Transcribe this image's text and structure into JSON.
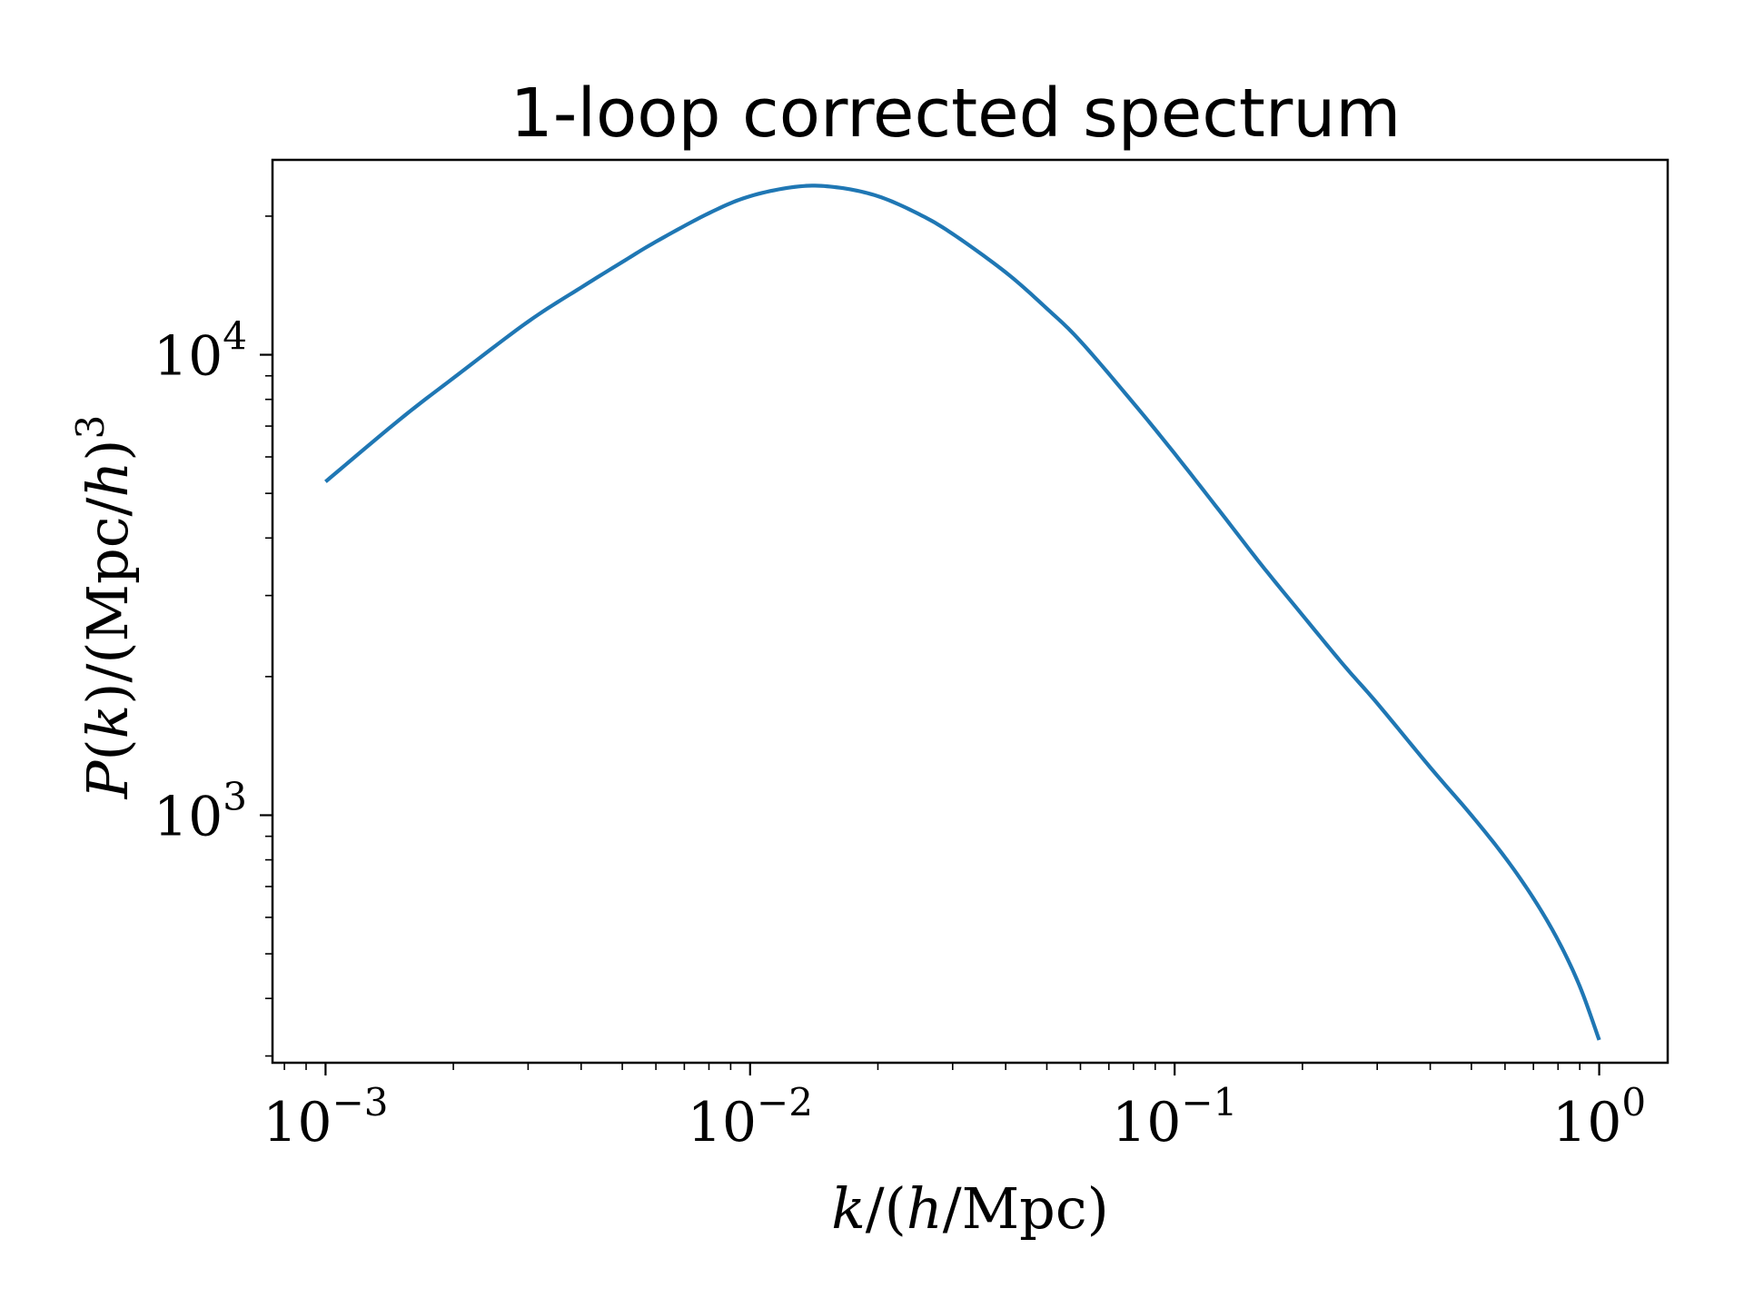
{
  "chart_data": {
    "type": "line",
    "title": "1-loop corrected spectrum",
    "xlabel": {
      "var": "k",
      "slash": "/",
      "open": "(",
      "h": "h",
      "slash2": "/",
      "unit": "Mpc",
      "close": ")"
    },
    "ylabel": {
      "P": "P",
      "open_k": "(",
      "k": "k",
      "close_k": ")",
      "slash": "/",
      "open": "(",
      "unit": "Mpc",
      "slash2": "/",
      "h": "h",
      "close": ")",
      "power": "3"
    },
    "x_scale": "log",
    "y_scale": "log",
    "xlim": [
      0.00075,
      1.45
    ],
    "ylim": [
      290,
      26500
    ],
    "x_ticks": [
      {
        "value": 0.001,
        "base": "10",
        "exp": "−3"
      },
      {
        "value": 0.01,
        "base": "10",
        "exp": "−2"
      },
      {
        "value": 0.1,
        "base": "10",
        "exp": "−1"
      },
      {
        "value": 1,
        "base": "10",
        "exp": "0"
      }
    ],
    "y_ticks": [
      {
        "value": 1000,
        "base": "10",
        "exp": "3"
      },
      {
        "value": 10000,
        "base": "10",
        "exp": "4"
      }
    ],
    "grid": false,
    "legend": "none",
    "series": [
      {
        "color": "#1f77b4",
        "x": [
          0.001,
          0.0015,
          0.002,
          0.003,
          0.004,
          0.005,
          0.006,
          0.008,
          0.01,
          0.013,
          0.016,
          0.02,
          0.025,
          0.03,
          0.04,
          0.05,
          0.06,
          0.08,
          0.1,
          0.13,
          0.16,
          0.2,
          0.25,
          0.3,
          0.4,
          0.5,
          0.6,
          0.7,
          0.8,
          0.9,
          1.0
        ],
        "y": [
          5300,
          7250,
          8900,
          11800,
          14000,
          15900,
          17600,
          20300,
          22100,
          23200,
          23100,
          22100,
          20200,
          18300,
          15100,
          12600,
          10700,
          7850,
          6100,
          4480,
          3500,
          2720,
          2120,
          1750,
          1270,
          1000,
          810,
          660,
          535,
          425,
          325
        ]
      }
    ]
  }
}
